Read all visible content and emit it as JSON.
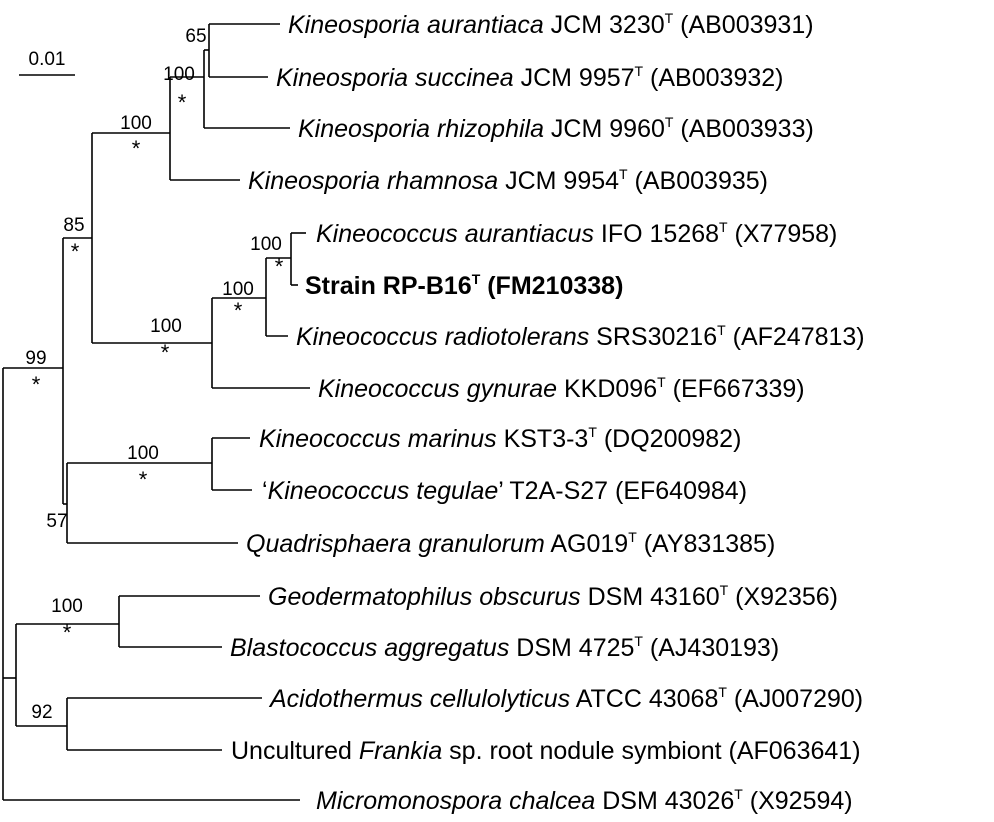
{
  "scale_bar": {
    "label": "0.01"
  },
  "taxa": [
    {
      "id": "t1",
      "italic": "Kineosporia aurantiaca",
      "strain": " JCM 3230",
      "sup": "T",
      "acc": " (AB003931)"
    },
    {
      "id": "t2",
      "italic": "Kineosporia succinea",
      "strain": " JCM 9957",
      "sup": "T",
      "acc": " (AB003932)"
    },
    {
      "id": "t3",
      "italic": "Kineosporia rhizophila",
      "strain": " JCM 9960",
      "sup": "T",
      "acc": " (AB003933)"
    },
    {
      "id": "t4",
      "italic": "Kineosporia rhamnosa",
      "strain": " JCM 9954",
      "sup": "T",
      "acc": " (AB003935)"
    },
    {
      "id": "t5",
      "italic": "Kineococcus aurantiacus",
      "strain": " IFO 15268",
      "sup": "T",
      "acc": " (X77958)"
    },
    {
      "id": "t6",
      "bold": true,
      "strain": "Strain RP-B16",
      "sup": "T",
      "acc": " (FM210338)"
    },
    {
      "id": "t7",
      "italic": "Kineococcus radiotolerans",
      "strain": " SRS30216",
      "sup": "T",
      "acc": " (AF247813)"
    },
    {
      "id": "t8",
      "italic": "Kineococcus gynurae",
      "strain": " KKD096",
      "sup": "T",
      "acc": " (EF667339)"
    },
    {
      "id": "t9",
      "italic": "Kineococcus marinus",
      "strain": " KST3-3",
      "sup": "T",
      "acc": " (DQ200982)"
    },
    {
      "id": "t10",
      "prefix": "‘",
      "italic": "Kineococcus tegulae",
      "strain": "’ T2A-S27 (EF640984)"
    },
    {
      "id": "t11",
      "italic": "Quadrisphaera granulorum",
      "strain": " AG019",
      "sup": "T",
      "acc": " (AY831385)"
    },
    {
      "id": "t12",
      "italic": "Geodermatophilus obscurus",
      "strain": " DSM 43160",
      "sup": "T",
      "acc": " (X92356)"
    },
    {
      "id": "t13",
      "italic": "Blastococcus aggregatus",
      "strain": " DSM 4725",
      "sup": "T",
      "acc": " (AJ430193)"
    },
    {
      "id": "t14",
      "italic": "Acidothermus cellulolyticus",
      "strain": " ATCC 43068",
      "sup": "T",
      "acc": " (AJ007290)"
    },
    {
      "id": "t15",
      "prefix": "Uncultured ",
      "italic": "Frankia",
      "strain": " sp. root nodule symbiont (AF063641)"
    },
    {
      "id": "t16",
      "italic": "Micromonospora chalcea",
      "strain": " DSM 43026",
      "sup": "T",
      "acc": " (X92594)"
    }
  ],
  "bootstrap": [
    {
      "node": "n65",
      "value": "65",
      "star": false
    },
    {
      "node": "n100a",
      "value": "100",
      "star": true
    },
    {
      "node": "n100b",
      "value": "100",
      "star": true
    },
    {
      "node": "n85",
      "value": "85",
      "star": true
    },
    {
      "node": "n100c",
      "value": "100",
      "star": true
    },
    {
      "node": "n100d",
      "value": "100",
      "star": true
    },
    {
      "node": "n100e",
      "value": "100",
      "star": true
    },
    {
      "node": "n99",
      "value": "99",
      "star": true
    },
    {
      "node": "n100f",
      "value": "100",
      "star": true
    },
    {
      "node": "n57",
      "value": "57",
      "star": false
    },
    {
      "node": "n100g",
      "value": "100",
      "star": true
    },
    {
      "node": "n92",
      "value": "92",
      "star": false
    }
  ],
  "symbols": {
    "significant_node_marker": "*"
  },
  "colors": {
    "line": "#000000",
    "background": "#ffffff"
  }
}
